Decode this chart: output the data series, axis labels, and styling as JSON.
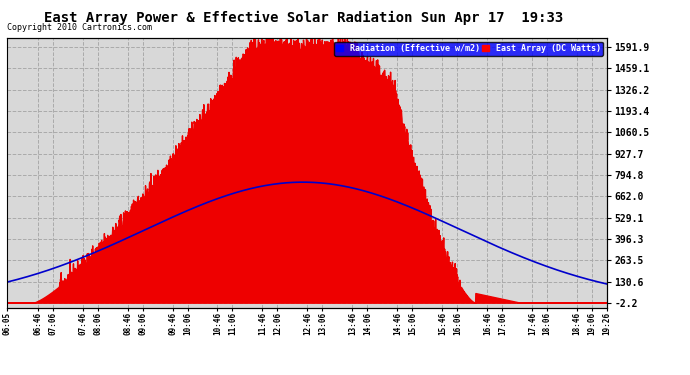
{
  "title": "East Array Power & Effective Solar Radiation Sun Apr 17  19:33",
  "copyright": "Copyright 2010 Cartronics.com",
  "legend_radiation": "Radiation (Effective w/m2)",
  "legend_array": "East Array (DC Watts)",
  "bg_color": "#ffffff",
  "plot_bg_color": "#d8d8d8",
  "grid_color": "#aaaaaa",
  "red_color": "#ee0000",
  "blue_color": "#0000cc",
  "yticks_right": [
    1591.9,
    1459.1,
    1326.2,
    1193.4,
    1060.5,
    927.7,
    794.8,
    662.0,
    529.1,
    396.3,
    263.5,
    130.6,
    -2.2
  ],
  "ymax": 1650,
  "ymin": -30,
  "xtick_labels": [
    "06:05",
    "06:46",
    "07:06",
    "07:46",
    "08:06",
    "08:46",
    "09:06",
    "09:46",
    "10:06",
    "10:46",
    "11:06",
    "11:46",
    "12:06",
    "12:46",
    "13:06",
    "13:46",
    "14:06",
    "14:46",
    "15:06",
    "15:46",
    "16:06",
    "16:46",
    "17:06",
    "17:46",
    "18:06",
    "18:46",
    "19:06",
    "19:26"
  ]
}
